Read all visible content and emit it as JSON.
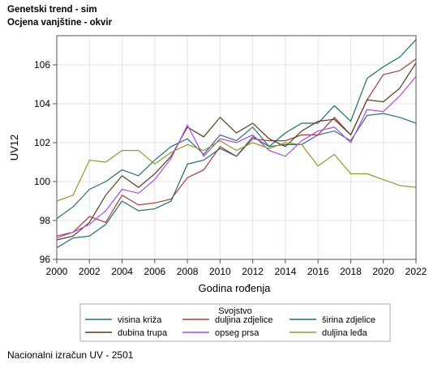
{
  "header": {
    "title_line1": "Genetski trend - sim",
    "title_line2": "Ocjena vanjštine - okvir"
  },
  "footnote": "Nacionalni izračun UV - 2501",
  "chart_data": {
    "type": "line",
    "xlabel": "Godina rođenja",
    "ylabel": "UV12",
    "xlim": [
      2000,
      2022
    ],
    "ylim": [
      96,
      107.5
    ],
    "xticks": [
      2000,
      2002,
      2004,
      2006,
      2008,
      2010,
      2012,
      2014,
      2016,
      2018,
      2020,
      2022
    ],
    "yticks": [
      96,
      98,
      100,
      102,
      104,
      106
    ],
    "grid": true,
    "legend": {
      "title": "Svojstvo",
      "placement": "bottom"
    },
    "x": [
      2000,
      2001,
      2002,
      2003,
      2004,
      2005,
      2006,
      2007,
      2008,
      2009,
      2010,
      2011,
      2012,
      2013,
      2014,
      2015,
      2016,
      2017,
      2018,
      2019,
      2020,
      2021,
      2022
    ],
    "series": [
      {
        "name": "visina križa",
        "color": "#2a6e78",
        "values": [
          98.1,
          98.7,
          99.6,
          100.0,
          100.6,
          100.3,
          101.1,
          101.8,
          102.2,
          101.4,
          102.4,
          102.1,
          102.8,
          101.8,
          101.9,
          101.9,
          102.4,
          102.6,
          102.1,
          103.4,
          103.5,
          103.3,
          103.0
        ]
      },
      {
        "name": "duljina zdjelice",
        "color": "#a83c3c",
        "values": [
          97.2,
          97.4,
          98.2,
          97.9,
          99.3,
          98.8,
          98.9,
          99.1,
          100.2,
          100.6,
          101.8,
          101.3,
          102.2,
          102.1,
          102.1,
          102.4,
          102.4,
          103.3,
          102.4,
          104.2,
          105.5,
          105.7,
          106.3
        ]
      },
      {
        "name": "širina zdjelice",
        "color": "#1f6f6a",
        "values": [
          96.6,
          97.1,
          97.2,
          97.8,
          99.0,
          98.5,
          98.6,
          99.0,
          100.9,
          101.1,
          101.7,
          101.3,
          102.3,
          101.8,
          102.5,
          103.0,
          103.0,
          103.9,
          103.1,
          105.3,
          105.9,
          106.4,
          107.3
        ]
      },
      {
        "name": "dubina trupa",
        "color": "#5a3a1e",
        "values": [
          97.0,
          97.2,
          97.9,
          99.3,
          100.3,
          99.7,
          100.4,
          101.3,
          102.8,
          102.3,
          103.3,
          102.5,
          103.0,
          102.2,
          101.8,
          102.6,
          103.1,
          103.2,
          102.4,
          104.2,
          104.1,
          104.8,
          106.1
        ]
      },
      {
        "name": "opseg prsa",
        "color": "#b04adc",
        "values": [
          97.1,
          97.4,
          97.8,
          98.5,
          99.6,
          99.4,
          100.1,
          101.2,
          102.9,
          101.3,
          102.2,
          102.0,
          102.4,
          101.6,
          101.3,
          102.1,
          102.6,
          102.8,
          102.0,
          103.7,
          103.6,
          104.4,
          105.4
        ]
      },
      {
        "name": "duljina leđa",
        "color": "#8f9a2f",
        "values": [
          99.0,
          99.3,
          101.1,
          101.0,
          101.6,
          101.6,
          100.9,
          101.5,
          101.9,
          101.6,
          102.1,
          101.6,
          102.0,
          101.7,
          102.0,
          101.9,
          100.8,
          101.4,
          100.4,
          100.4,
          100.1,
          99.8,
          99.7
        ]
      }
    ]
  }
}
